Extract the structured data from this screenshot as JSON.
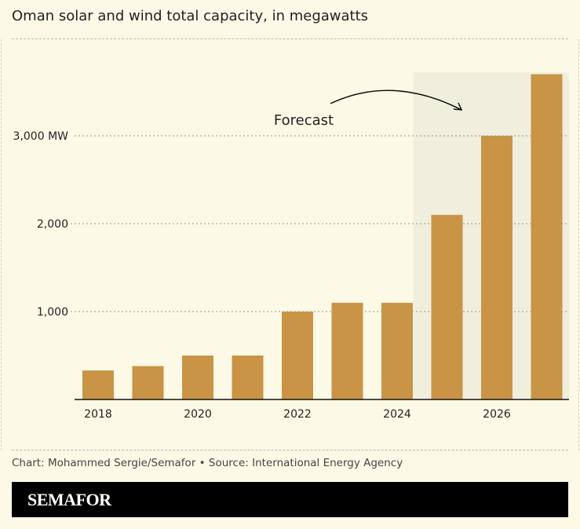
{
  "title": "Oman solar and wind total capacity, in megawatts",
  "source": "Chart: Mohammed Sergie/Semafor • Source: International Energy Agency",
  "brand": "SEMAFOR",
  "chart_data": {
    "type": "bar",
    "title": "Oman solar and wind total capacity, in megawatts",
    "categories": [
      "2018",
      "2019",
      "2020",
      "2021",
      "2022",
      "2023",
      "2024",
      "2025",
      "2026",
      "2027"
    ],
    "values": [
      330,
      380,
      500,
      500,
      1000,
      1100,
      1100,
      2100,
      3000,
      3700
    ],
    "x_tick_labels": [
      "2018",
      "2020",
      "2022",
      "2024",
      "2026"
    ],
    "y_ticks": [
      1000,
      2000,
      3000
    ],
    "y_tick_labels": [
      "1,000",
      "2,000",
      "3,000 MW"
    ],
    "ylim": [
      0,
      3720
    ],
    "grid": true,
    "forecast_start": "2025",
    "annotation": "Forecast",
    "colors": {
      "bar": "#c99446",
      "forecast_bg": "#f0eedd",
      "background": "#fcf9e6"
    }
  }
}
